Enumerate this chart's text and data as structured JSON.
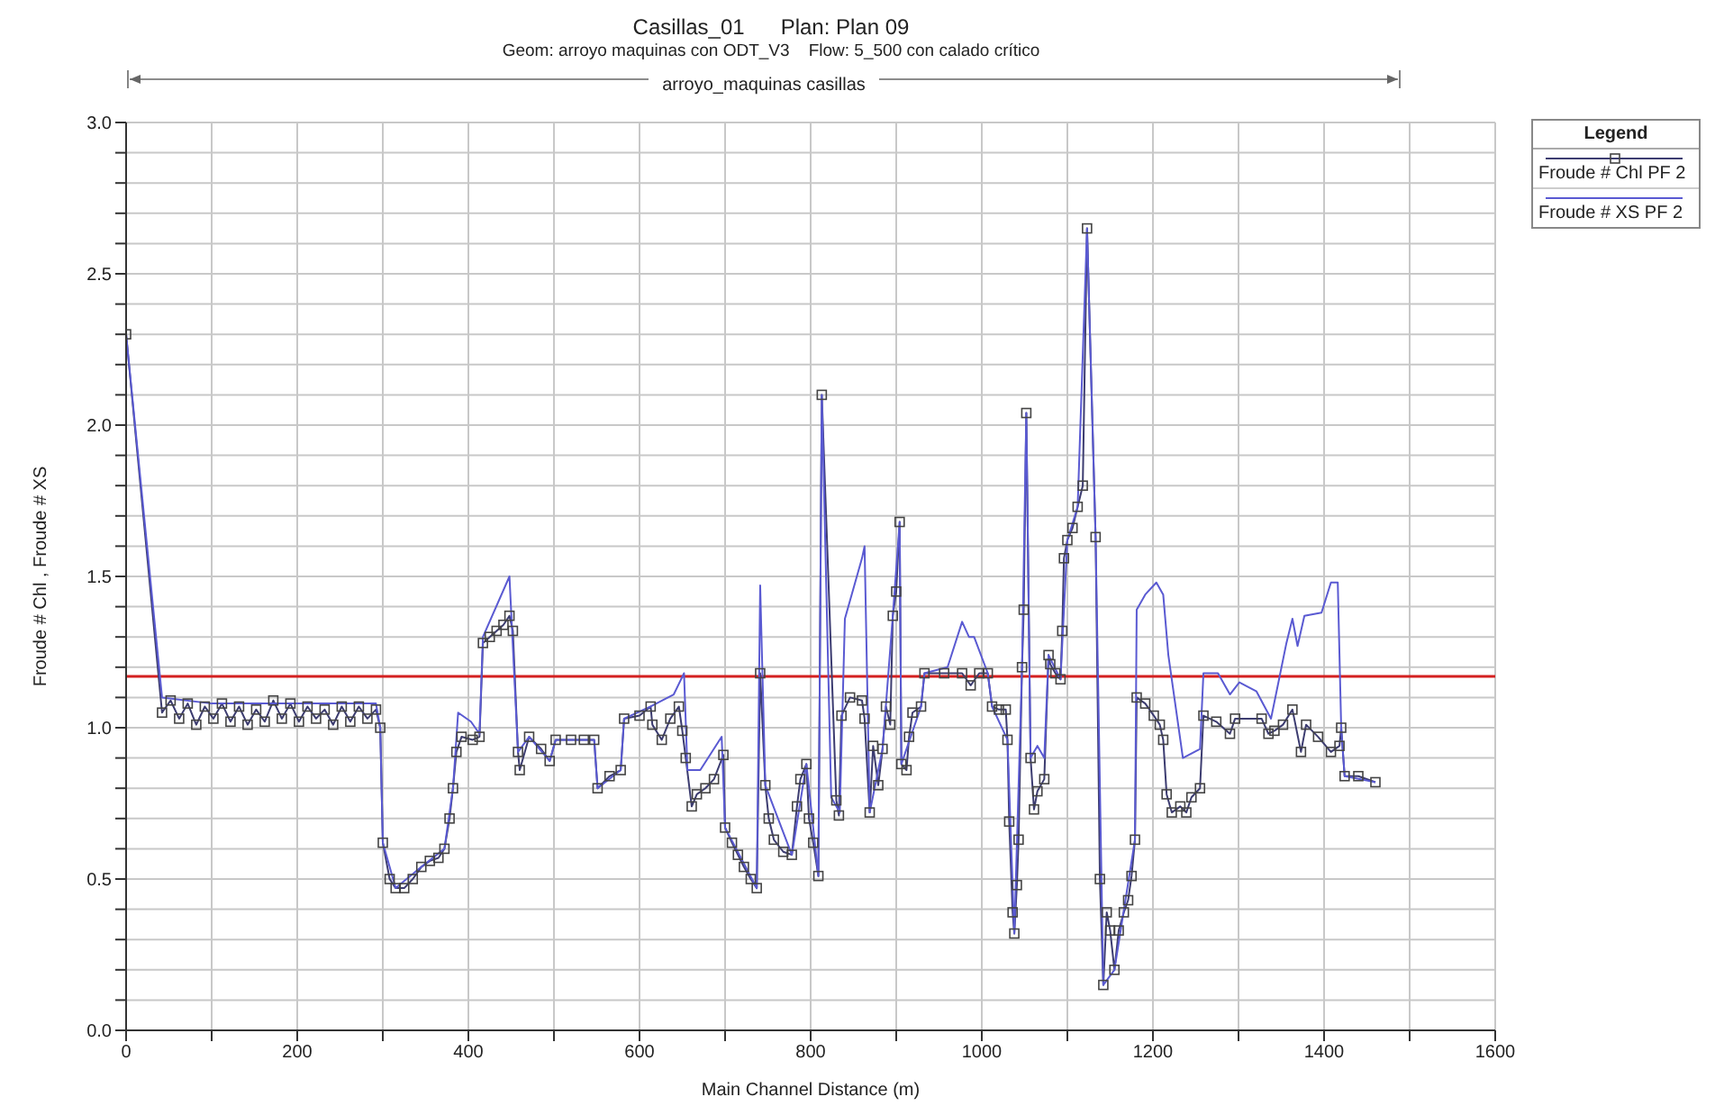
{
  "chart_data": {
    "type": "line",
    "title": "Casillas_01      Plan: Plan 09",
    "subtitle": "Geom: arroyo maquinas con ODT_V3    Flow: 5_500 con calado crítico",
    "xlabel": "Main Channel Distance (m)",
    "ylabel": "Froude # Chl , Froude # XS",
    "legend_title": "Legend",
    "annotations": [
      "arroyo_maquinas casillas"
    ],
    "xlim": [
      0,
      1600
    ],
    "xticks": [
      0,
      {
        "value": 100,
        "label": null
      },
      200,
      {
        "value": 300,
        "label": null
      },
      400,
      {
        "value": 500,
        "label": null
      },
      600,
      {
        "value": 700,
        "label": null
      },
      800,
      {
        "value": 900,
        "label": null
      },
      1000,
      {
        "value": 1100,
        "label": null
      },
      1200,
      {
        "value": 1300,
        "label": null
      },
      1400,
      {
        "value": 1500,
        "label": null
      },
      1600
    ],
    "ylim": [
      0,
      3
    ],
    "yticks": [
      {
        "value": 0,
        "label": "0.0"
      },
      {
        "value": 0.1,
        "label": null
      },
      {
        "value": 0.2,
        "label": null
      },
      {
        "value": 0.3,
        "label": null
      },
      {
        "value": 0.4,
        "label": null
      },
      {
        "value": 0.5,
        "label": "0.5"
      },
      {
        "value": 0.6,
        "label": null
      },
      {
        "value": 0.7,
        "label": null
      },
      {
        "value": 0.8,
        "label": null
      },
      {
        "value": 0.9,
        "label": null
      },
      {
        "value": 1,
        "label": "1.0"
      },
      {
        "value": 1.1,
        "label": null
      },
      {
        "value": 1.2,
        "label": null
      },
      {
        "value": 1.3,
        "label": null
      },
      {
        "value": 1.4,
        "label": null
      },
      {
        "value": 1.5,
        "label": "1.5"
      },
      {
        "value": 1.6,
        "label": null
      },
      {
        "value": 1.7,
        "label": null
      },
      {
        "value": 1.8,
        "label": null
      },
      {
        "value": 1.9,
        "label": null
      },
      {
        "value": 2,
        "label": "2.0"
      },
      {
        "value": 2.1,
        "label": null
      },
      {
        "value": 2.2,
        "label": null
      },
      {
        "value": 2.3,
        "label": null
      },
      {
        "value": 2.4,
        "label": null
      },
      {
        "value": 2.5,
        "label": "2.5"
      },
      {
        "value": 2.6,
        "label": null
      },
      {
        "value": 2.7,
        "label": null
      },
      {
        "value": 2.8,
        "label": null
      },
      {
        "value": 2.9,
        "label": null
      },
      {
        "value": 3,
        "label": "3.0"
      }
    ],
    "grid": true,
    "legend": "top right",
    "line_style": "solid",
    "ref_lines": [
      {
        "axis": "y",
        "value": 1.17,
        "color": "#d42020"
      }
    ],
    "series": [
      {
        "name": "Froude # Chl PF 2",
        "color": "#3c3c70",
        "marker": "square",
        "x": [
          0,
          42,
          52,
          62,
          72,
          82,
          92,
          102,
          112,
          122,
          132,
          142,
          152,
          162,
          172,
          182,
          192,
          202,
          212,
          222,
          232,
          242,
          252,
          262,
          272,
          282,
          292,
          297,
          300,
          308,
          315,
          325,
          335,
          345,
          355,
          365,
          372,
          378,
          382,
          386,
          392,
          405,
          413,
          417,
          425,
          433,
          441,
          448,
          452,
          458,
          460,
          471,
          485,
          495,
          502,
          520,
          535,
          547,
          551,
          565,
          578,
          582,
          600,
          613,
          615,
          626,
          636,
          646,
          650,
          654,
          661,
          667,
          677,
          687,
          698,
          700,
          708,
          715,
          722,
          730,
          737,
          741,
          747,
          751,
          757,
          768,
          778,
          784,
          788,
          795,
          798,
          803,
          809,
          813,
          830,
          833,
          836,
          846,
          860,
          863,
          869,
          873,
          879,
          884,
          888,
          893,
          896,
          900,
          904,
          906,
          912,
          915,
          919,
          929,
          933,
          956,
          977,
          987,
          997,
          1007,
          1012,
          1020,
          1028,
          1030,
          1032,
          1036,
          1038,
          1041,
          1043,
          1047,
          1049,
          1052,
          1057,
          1061,
          1065,
          1073,
          1078,
          1080,
          1086,
          1092,
          1094,
          1096,
          1100,
          1106,
          1112,
          1118,
          1123,
          1133,
          1138,
          1142,
          1146,
          1150,
          1155,
          1160,
          1166,
          1171,
          1175,
          1179,
          1181,
          1191,
          1201,
          1208,
          1212,
          1216,
          1222,
          1232,
          1239,
          1245,
          1255,
          1259,
          1274,
          1290,
          1296,
          1327,
          1335,
          1342,
          1352,
          1363,
          1373,
          1379,
          1393,
          1408,
          1418,
          1420,
          1424,
          1440,
          1460
        ],
        "values": [
          2.3,
          1.05,
          1.09,
          1.03,
          1.08,
          1.01,
          1.07,
          1.03,
          1.08,
          1.02,
          1.07,
          1.01,
          1.06,
          1.02,
          1.09,
          1.03,
          1.08,
          1.02,
          1.07,
          1.03,
          1.06,
          1.01,
          1.07,
          1.02,
          1.07,
          1.03,
          1.06,
          1.0,
          0.62,
          0.5,
          0.47,
          0.47,
          0.5,
          0.54,
          0.56,
          0.57,
          0.6,
          0.7,
          0.8,
          0.92,
          0.97,
          0.96,
          0.97,
          1.28,
          1.3,
          1.32,
          1.34,
          1.37,
          1.32,
          0.92,
          0.86,
          0.97,
          0.93,
          0.89,
          0.96,
          0.96,
          0.96,
          0.96,
          0.8,
          0.84,
          0.86,
          1.03,
          1.04,
          1.07,
          1.01,
          0.96,
          1.03,
          1.07,
          0.99,
          0.9,
          0.74,
          0.78,
          0.8,
          0.83,
          0.91,
          0.67,
          0.62,
          0.58,
          0.54,
          0.5,
          0.47,
          1.18,
          0.81,
          0.7,
          0.63,
          0.59,
          0.58,
          0.74,
          0.83,
          0.88,
          0.7,
          0.62,
          0.51,
          2.1,
          0.76,
          0.71,
          1.04,
          1.1,
          1.09,
          1.03,
          0.72,
          0.94,
          0.81,
          0.93,
          1.07,
          1.01,
          1.37,
          1.45,
          1.68,
          0.88,
          0.86,
          0.97,
          1.05,
          1.07,
          1.18,
          1.18,
          1.18,
          1.14,
          1.18,
          1.18,
          1.07,
          1.06,
          1.06,
          0.96,
          0.69,
          0.39,
          0.32,
          0.48,
          0.63,
          1.2,
          1.39,
          2.04,
          0.9,
          0.73,
          0.79,
          0.83,
          1.24,
          1.21,
          1.18,
          1.16,
          1.32,
          1.56,
          1.62,
          1.66,
          1.73,
          1.8,
          2.65,
          1.63,
          0.5,
          0.15,
          0.39,
          0.33,
          0.2,
          0.33,
          0.39,
          0.43,
          0.51,
          0.63,
          1.1,
          1.08,
          1.04,
          1.01,
          0.96,
          0.78,
          0.72,
          0.74,
          0.72,
          0.77,
          0.8,
          1.04,
          1.02,
          0.98,
          1.03,
          1.03,
          0.98,
          0.99,
          1.01,
          1.06,
          0.92,
          1.01,
          0.97,
          0.92,
          0.94,
          1.0,
          0.84,
          0.84,
          0.82
        ]
      },
      {
        "name": "Froude # XS PF 2",
        "color": "#5a5ad2",
        "marker": "none",
        "x": [
          0,
          42,
          100,
          200,
          292,
          297,
          300,
          315,
          345,
          372,
          382,
          388,
          403,
          413,
          417,
          448,
          458,
          471,
          495,
          502,
          547,
          551,
          578,
          582,
          613,
          640,
          652,
          656,
          671,
          696,
          700,
          737,
          741,
          747,
          778,
          795,
          809,
          813,
          824,
          834,
          840,
          860,
          863,
          869,
          884,
          896,
          904,
          906,
          929,
          933,
          960,
          977,
          985,
          991,
          1007,
          1012,
          1030,
          1038,
          1047,
          1052,
          1057,
          1065,
          1073,
          1078,
          1092,
          1100,
          1112,
          1123,
          1133,
          1142,
          1155,
          1179,
          1181,
          1191,
          1204,
          1212,
          1218,
          1235,
          1255,
          1259,
          1276,
          1290,
          1301,
          1321,
          1338,
          1356,
          1363,
          1369,
          1377,
          1397,
          1408,
          1416,
          1420,
          1424,
          1460
        ],
        "values": [
          2.3,
          1.1,
          1.08,
          1.08,
          1.08,
          1.0,
          0.62,
          0.47,
          0.54,
          0.6,
          0.8,
          1.05,
          1.02,
          0.98,
          1.3,
          1.5,
          0.92,
          0.97,
          0.89,
          0.96,
          0.96,
          0.8,
          0.86,
          1.03,
          1.07,
          1.11,
          1.18,
          0.86,
          0.86,
          0.97,
          0.67,
          0.47,
          1.47,
          0.81,
          0.58,
          0.88,
          0.51,
          2.1,
          0.77,
          0.72,
          1.36,
          1.56,
          1.6,
          0.72,
          0.93,
          1.37,
          1.68,
          0.88,
          1.07,
          1.18,
          1.2,
          1.35,
          1.3,
          1.3,
          1.18,
          1.07,
          0.96,
          0.32,
          1.2,
          2.04,
          0.9,
          0.94,
          0.9,
          1.24,
          1.16,
          1.62,
          1.73,
          2.65,
          1.63,
          0.15,
          0.2,
          0.63,
          1.39,
          1.44,
          1.48,
          1.44,
          1.24,
          0.9,
          0.93,
          1.18,
          1.18,
          1.11,
          1.15,
          1.12,
          1.03,
          1.28,
          1.36,
          1.27,
          1.37,
          1.38,
          1.48,
          1.48,
          1.0,
          0.84,
          0.82
        ]
      }
    ]
  }
}
